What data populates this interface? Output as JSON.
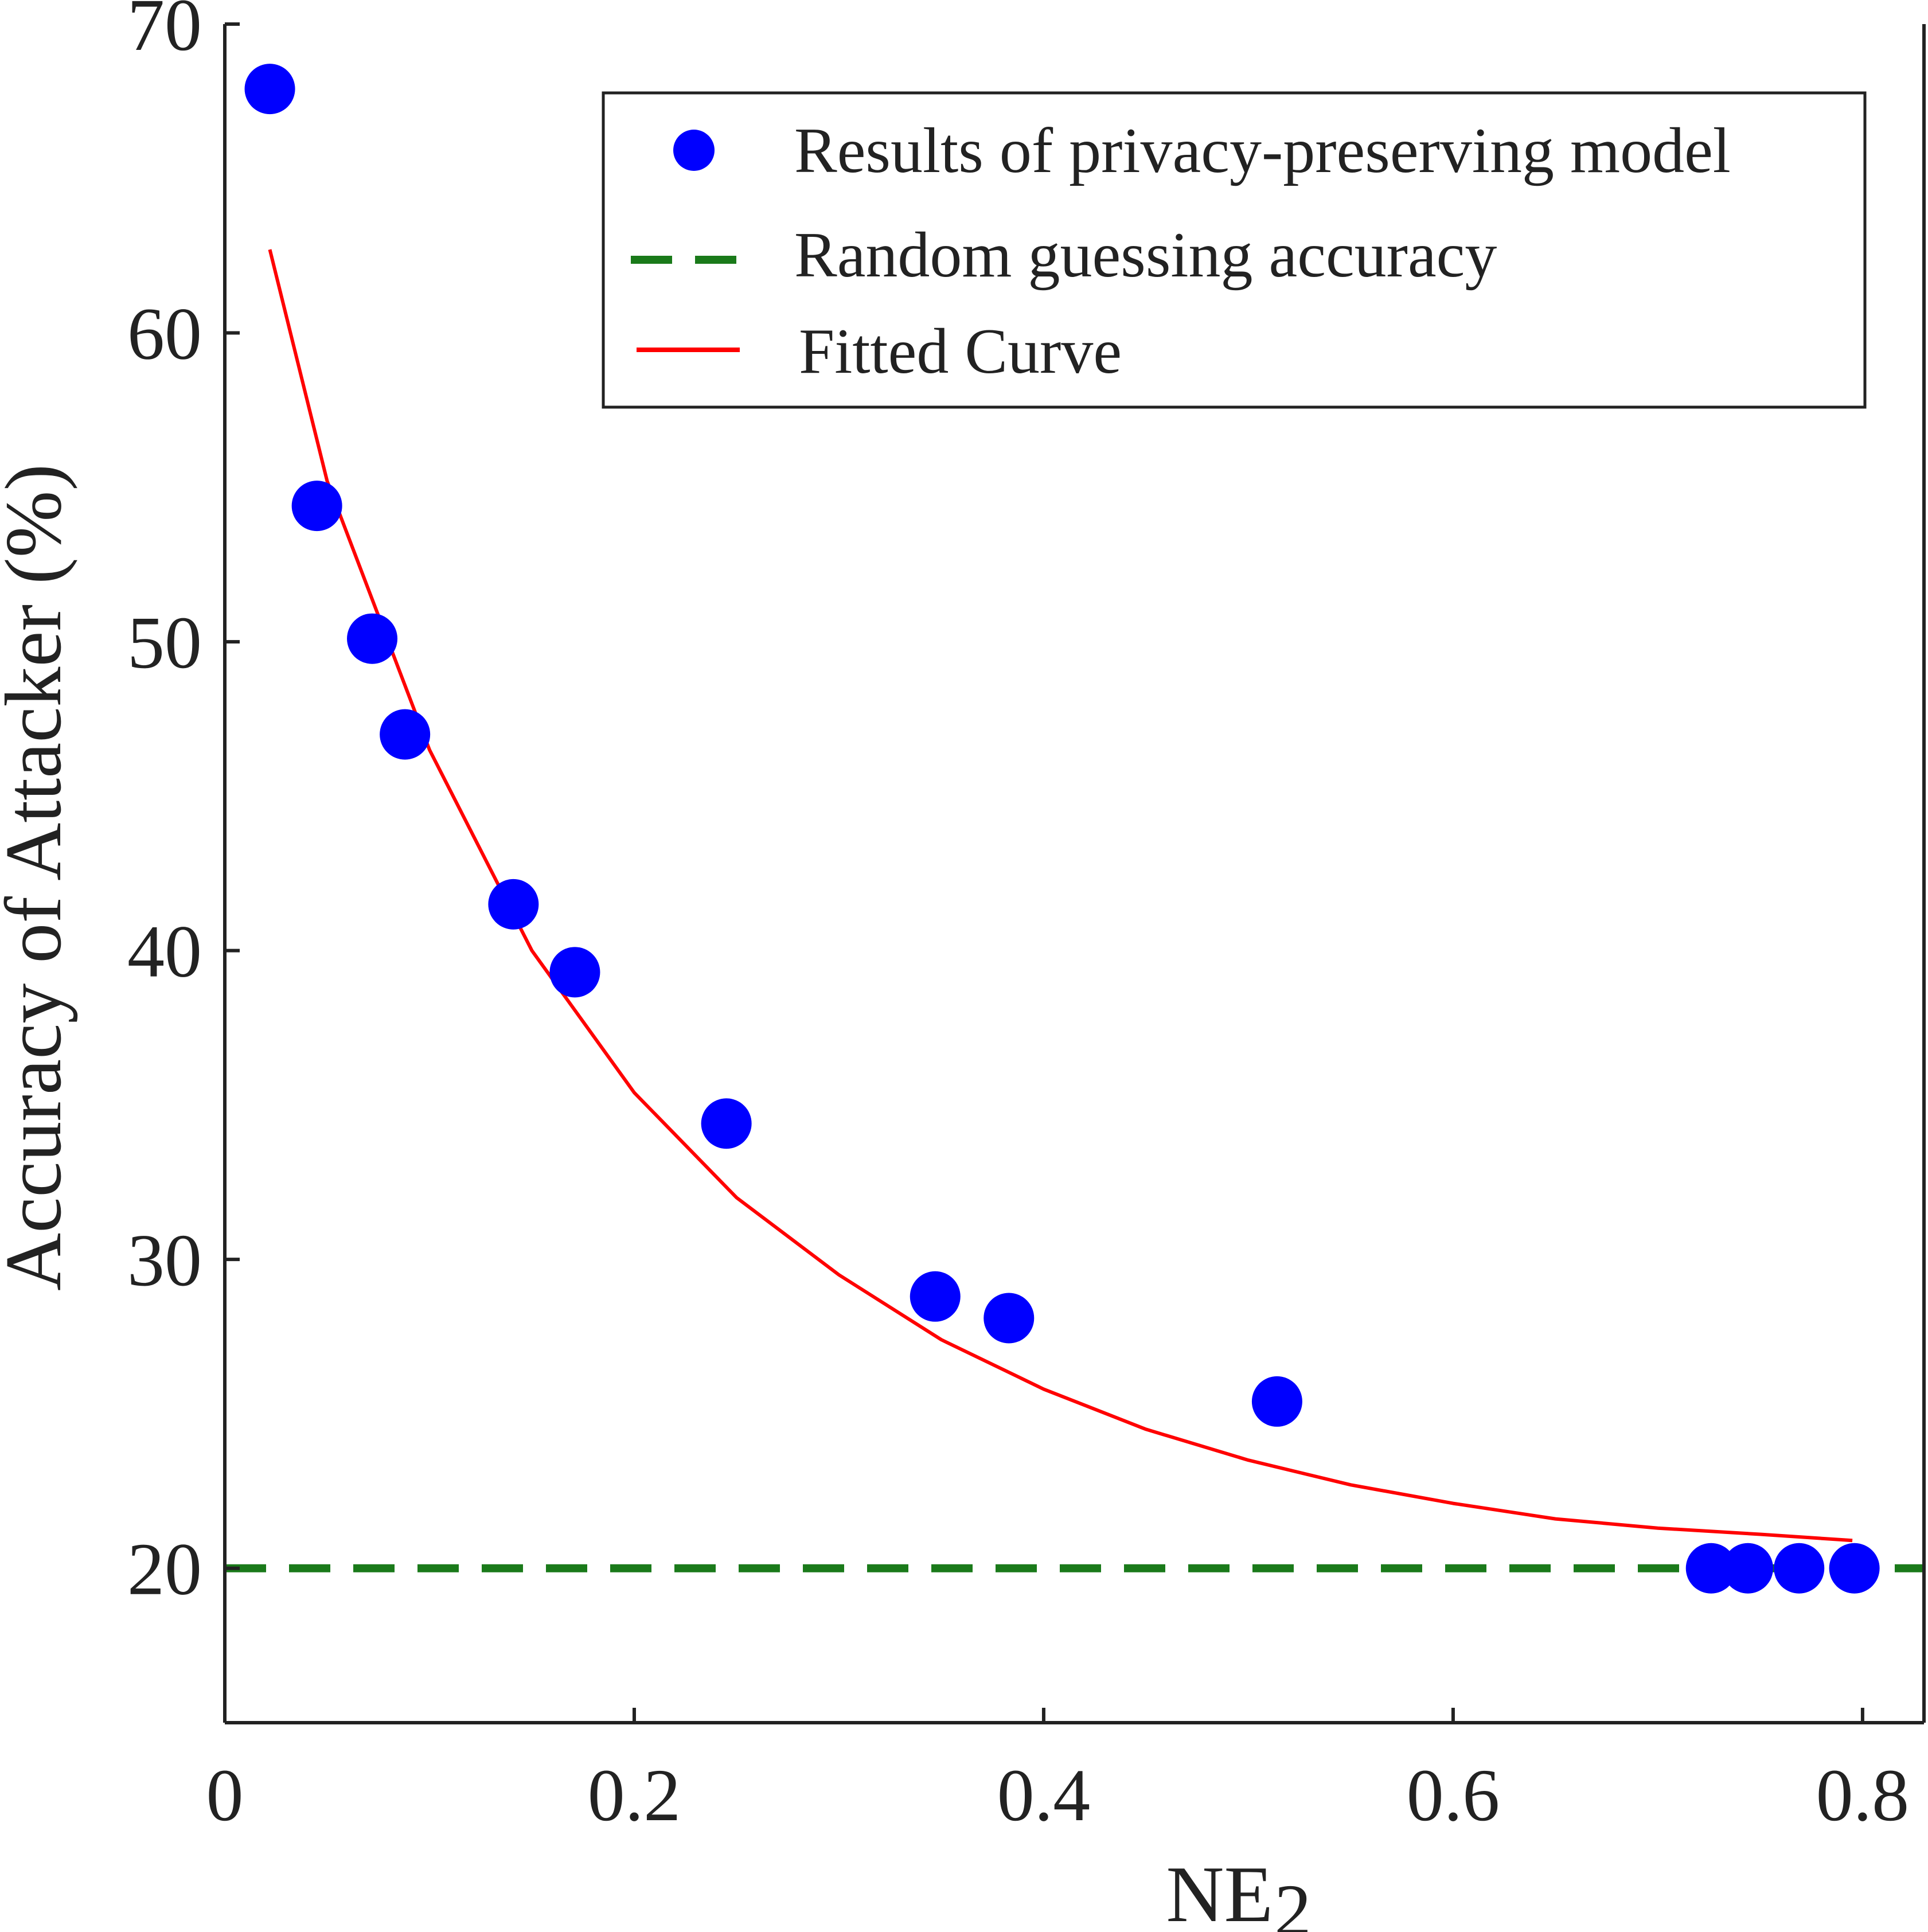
{
  "chart_data": {
    "type": "scatter",
    "title": "",
    "xlabel": "NE",
    "xlabel_subscript": "2",
    "ylabel": "Accuracy of Attacker (%)",
    "xlim": [
      0,
      0.83
    ],
    "ylim": [
      15,
      70
    ],
    "xticks": [
      0,
      0.2,
      0.4,
      0.6,
      0.8
    ],
    "xtick_labels": [
      "0",
      "0.2",
      "0.4",
      "0.6",
      "0.8"
    ],
    "yticks": [
      20,
      30,
      40,
      50,
      60,
      70
    ],
    "ytick_labels": [
      "20",
      "30",
      "40",
      "50",
      "60",
      "70"
    ],
    "grid": false,
    "legend_position": "top-right",
    "series": [
      {
        "name": "Results of privacy-preserving model",
        "kind": "scatter",
        "color": "#0000ff",
        "x": [
          0.022,
          0.045,
          0.072,
          0.088,
          0.141,
          0.171,
          0.245,
          0.347,
          0.383,
          0.514,
          0.726,
          0.744,
          0.769,
          0.796
        ],
        "y": [
          67.9,
          54.4,
          50.1,
          47.0,
          41.5,
          39.3,
          34.4,
          28.8,
          28.1,
          25.4,
          20.0,
          20.0,
          20.0,
          20.0
        ]
      },
      {
        "name": "Random guessing accuracy",
        "kind": "hline",
        "color": "#1a7a1a",
        "y": 20
      },
      {
        "name": "Fitted Curve",
        "kind": "line",
        "color": "#ff0000",
        "x": [
          0.022,
          0.05,
          0.1,
          0.15,
          0.2,
          0.25,
          0.3,
          0.35,
          0.4,
          0.45,
          0.5,
          0.55,
          0.6,
          0.65,
          0.7,
          0.75,
          0.795
        ],
        "y": [
          62.7,
          55.2,
          46.5,
          40.0,
          35.4,
          32.0,
          29.5,
          27.4,
          25.8,
          24.5,
          23.5,
          22.7,
          22.1,
          21.6,
          21.3,
          21.1,
          20.9
        ]
      }
    ]
  }
}
